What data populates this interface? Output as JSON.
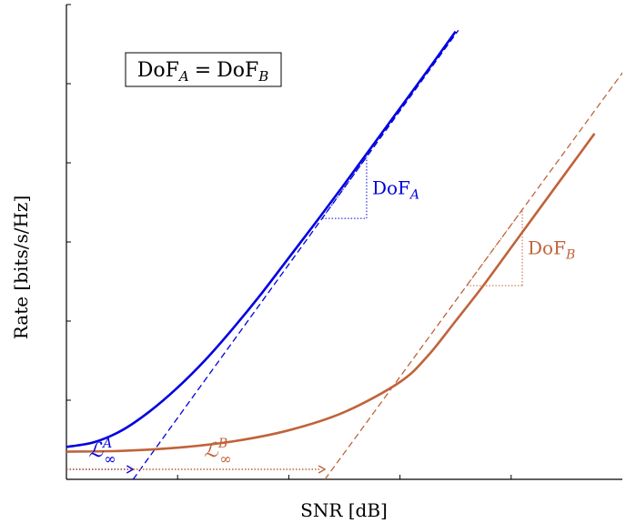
{
  "chart_data": {
    "type": "line",
    "title": "",
    "xlabel": "SNR [dB]",
    "ylabel": "Rate [bits/s/Hz]",
    "xlim": [
      0,
      10
    ],
    "ylim": [
      0,
      6
    ],
    "grid": false,
    "box_label": {
      "text": "DoF",
      "sub1": "A",
      "eq": "=",
      "text2": "DoF",
      "sub2": "B"
    },
    "colors": {
      "A": "#0000e0",
      "B": "#c0633a",
      "axis": "#000000"
    },
    "series": [
      {
        "id": "A",
        "x": [
          0,
          0.5,
          1,
          1.5,
          2,
          2.5,
          3,
          3.5,
          4,
          4.5,
          5,
          5.5,
          6,
          6.5,
          7
        ],
        "y": [
          0.41,
          0.47,
          0.62,
          0.86,
          1.16,
          1.51,
          1.91,
          2.34,
          2.8,
          3.26,
          3.73,
          4.21,
          4.69,
          5.17,
          5.66
        ]
      },
      {
        "id": "B",
        "x": [
          0,
          1,
          2,
          3,
          4,
          5,
          6,
          6.5,
          7,
          7.5,
          8,
          8.5,
          9,
          9.5
        ],
        "y": [
          0.35,
          0.36,
          0.4,
          0.48,
          0.62,
          0.85,
          1.23,
          1.56,
          2.0,
          2.45,
          2.93,
          3.41,
          3.89,
          4.37
        ]
      }
    ],
    "asymptotes": [
      {
        "id": "A",
        "x0": 1.2,
        "slope": 0.97,
        "xmax": 7.05
      },
      {
        "id": "B",
        "x0": 4.65,
        "slope": 0.96,
        "xmax": 10.2
      }
    ],
    "slope_triangles": [
      {
        "id": "A",
        "x1": 4.6,
        "x2": 5.4,
        "label": "DoF",
        "sub": "A"
      },
      {
        "id": "B",
        "x1": 7.2,
        "x2": 8.2,
        "label": "DoF",
        "sub": "B"
      }
    ],
    "offsets": [
      {
        "id": "A",
        "x_end": 1.2,
        "label": "ℒ",
        "sub": "∞",
        "sup": "A"
      },
      {
        "id": "B",
        "x_end": 4.65,
        "label": "ℒ",
        "sub": "∞",
        "sup": "B"
      }
    ]
  }
}
